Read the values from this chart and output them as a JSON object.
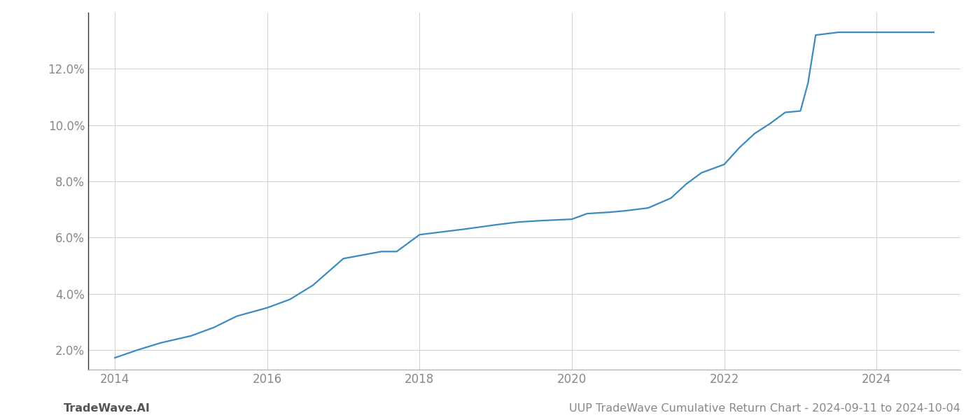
{
  "x_years": [
    2014.0,
    2014.3,
    2014.6,
    2015.0,
    2015.3,
    2015.6,
    2016.0,
    2016.3,
    2016.6,
    2017.0,
    2017.3,
    2017.5,
    2017.7,
    2018.0,
    2018.3,
    2018.6,
    2019.0,
    2019.3,
    2019.6,
    2020.0,
    2020.2,
    2020.5,
    2020.7,
    2021.0,
    2021.3,
    2021.5,
    2021.7,
    2022.0,
    2022.2,
    2022.4,
    2022.6,
    2022.8,
    2023.0,
    2023.1,
    2023.2,
    2023.5,
    2023.7,
    2024.0,
    2024.75
  ],
  "y_values": [
    1.72,
    2.0,
    2.25,
    2.5,
    2.8,
    3.2,
    3.5,
    3.8,
    4.3,
    5.25,
    5.4,
    5.5,
    5.5,
    6.1,
    6.2,
    6.3,
    6.45,
    6.55,
    6.6,
    6.65,
    6.85,
    6.9,
    6.95,
    7.05,
    7.4,
    7.9,
    8.3,
    8.6,
    9.2,
    9.7,
    10.05,
    10.45,
    10.5,
    11.5,
    13.2,
    13.3,
    13.3,
    13.3,
    13.3
  ],
  "line_color": "#3a8bbf",
  "background_color": "#ffffff",
  "grid_color": "#d0d0d0",
  "spine_color": "#333333",
  "tick_color": "#888888",
  "footer_left": "TradeWave.AI",
  "footer_right": "UUP TradeWave Cumulative Return Chart - 2024-09-11 to 2024-10-04",
  "ylim": [
    1.3,
    14.0
  ],
  "xlim": [
    2013.65,
    2025.1
  ],
  "yticks": [
    2.0,
    4.0,
    6.0,
    8.0,
    10.0,
    12.0
  ],
  "xticks": [
    2014,
    2016,
    2018,
    2020,
    2022,
    2024
  ],
  "line_width": 1.6,
  "footer_fontsize": 11.5,
  "tick_fontsize": 12
}
